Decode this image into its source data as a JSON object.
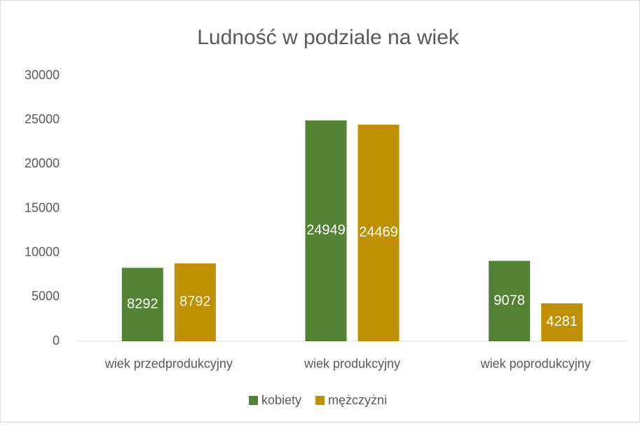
{
  "chart_data": {
    "type": "bar",
    "title": "Ludność w podziale na wiek",
    "categories": [
      "wiek przedprodukcyjny",
      "wiek produkcyjny",
      "wiek poprodukcyjny"
    ],
    "series": [
      {
        "name": "kobiety",
        "color": "#548235",
        "values": [
          8292,
          24949,
          9078
        ]
      },
      {
        "name": "mężczyżni",
        "color": "#bf9000",
        "values": [
          8792,
          24469,
          4281
        ]
      }
    ],
    "ylim": [
      0,
      30000
    ],
    "yticks": [
      0,
      5000,
      10000,
      15000,
      20000,
      25000,
      30000
    ],
    "grid": false,
    "legend": "bottom"
  }
}
